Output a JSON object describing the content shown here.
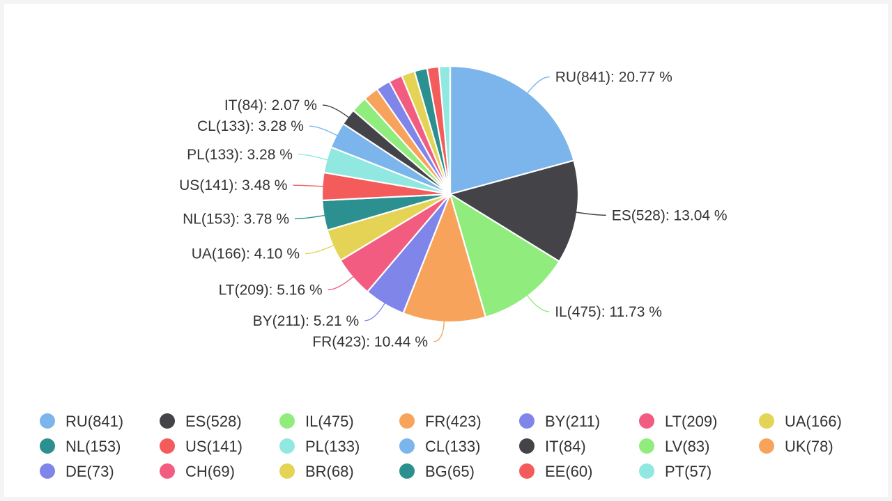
{
  "chart_data": {
    "type": "pie",
    "title": "",
    "start_angle_deg": 90,
    "direction": "clockwise",
    "legend_position": "bottom",
    "slices": [
      {
        "name": "RU",
        "value": 841,
        "legend": "RU(841)",
        "label": "RU(841): 20.77 %",
        "color": "#7cb5ec"
      },
      {
        "name": "ES",
        "value": 528,
        "legend": "ES(528)",
        "label": "ES(528): 13.04 %",
        "color": "#434348"
      },
      {
        "name": "IL",
        "value": 475,
        "legend": "IL(475)",
        "label": "IL(475): 11.73 %",
        "color": "#90ed7d"
      },
      {
        "name": "FR",
        "value": 423,
        "legend": "FR(423)",
        "label": "FR(423): 10.44 %",
        "color": "#f7a35c"
      },
      {
        "name": "BY",
        "value": 211,
        "legend": "BY(211)",
        "label": "BY(211): 5.21 %",
        "color": "#8085e9"
      },
      {
        "name": "LT",
        "value": 209,
        "legend": "LT(209)",
        "label": "LT(209): 5.16 %",
        "color": "#f15c80"
      },
      {
        "name": "UA",
        "value": 166,
        "legend": "UA(166)",
        "label": "UA(166): 4.10 %",
        "color": "#e4d354"
      },
      {
        "name": "NL",
        "value": 153,
        "legend": "NL(153)",
        "label": "NL(153): 3.78 %",
        "color": "#2b908f"
      },
      {
        "name": "US",
        "value": 141,
        "legend": "US(141)",
        "label": "US(141): 3.48 %",
        "color": "#f45b5b"
      },
      {
        "name": "PL",
        "value": 133,
        "legend": "PL(133)",
        "label": "PL(133): 3.28 %",
        "color": "#91e8e1"
      },
      {
        "name": "CL",
        "value": 133,
        "legend": "CL(133)",
        "label": "CL(133): 3.28 %",
        "color": "#7cb5ec"
      },
      {
        "name": "IT",
        "value": 84,
        "legend": "IT(84)",
        "label": "IT(84): 2.07 %",
        "color": "#434348"
      },
      {
        "name": "LV",
        "value": 83,
        "legend": "LV(83)",
        "label": "",
        "color": "#90ed7d"
      },
      {
        "name": "UK",
        "value": 78,
        "legend": "UK(78)",
        "label": "",
        "color": "#f7a35c"
      },
      {
        "name": "DE",
        "value": 73,
        "legend": "DE(73)",
        "label": "",
        "color": "#8085e9"
      },
      {
        "name": "CH",
        "value": 69,
        "legend": "CH(69)",
        "label": "",
        "color": "#f15c80"
      },
      {
        "name": "BR",
        "value": 68,
        "legend": "BR(68)",
        "label": "",
        "color": "#e4d354"
      },
      {
        "name": "BG",
        "value": 65,
        "legend": "BG(65)",
        "label": "",
        "color": "#2b908f"
      },
      {
        "name": "EE",
        "value": 60,
        "legend": "EE(60)",
        "label": "",
        "color": "#f45b5b"
      },
      {
        "name": "PT",
        "value": 57,
        "legend": "PT(57)",
        "label": "",
        "color": "#91e8e1"
      }
    ]
  }
}
